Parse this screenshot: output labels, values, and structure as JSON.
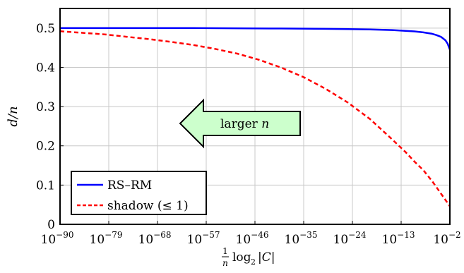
{
  "chart_data": {
    "type": "line",
    "xlabel": "1/n log2 |C|",
    "xlabel_parts": {
      "frac_num": "1",
      "frac_den": "n",
      "log": "log",
      "log_base": "2",
      "arg": "|C|"
    },
    "ylabel": "d/n",
    "x_scale": "log10",
    "xlim": [
      1e-90,
      0.01
    ],
    "ylim": [
      0,
      0.55
    ],
    "grid": true,
    "x_ticks": [
      {
        "base": "10",
        "exp": "−90",
        "value": -90
      },
      {
        "base": "10",
        "exp": "−79",
        "value": -79
      },
      {
        "base": "10",
        "exp": "−68",
        "value": -68
      },
      {
        "base": "10",
        "exp": "−57",
        "value": -57
      },
      {
        "base": "10",
        "exp": "−46",
        "value": -46
      },
      {
        "base": "10",
        "exp": "−35",
        "value": -35
      },
      {
        "base": "10",
        "exp": "−24",
        "value": -24
      },
      {
        "base": "10",
        "exp": "−13",
        "value": -13
      },
      {
        "base": "10",
        "exp": "−2",
        "value": -2
      }
    ],
    "y_ticks": [
      {
        "label": "0",
        "value": 0
      },
      {
        "label": "0.1",
        "value": 0.1
      },
      {
        "label": "0.2",
        "value": 0.2
      },
      {
        "label": "0.3",
        "value": 0.3
      },
      {
        "label": "0.4",
        "value": 0.4
      },
      {
        "label": "0.5",
        "value": 0.5
      }
    ],
    "series": [
      {
        "name": "RS–RM",
        "color": "#0000ff",
        "dash": "solid",
        "log10_x": [
          -90,
          -80,
          -70,
          -60,
          -50,
          -40,
          -30,
          -25,
          -20,
          -15,
          -12,
          -10,
          -8,
          -6,
          -5,
          -4,
          -3,
          -2.5,
          -2
        ],
        "y": [
          0.5,
          0.5,
          0.5,
          0.5,
          0.4995,
          0.499,
          0.498,
          0.4975,
          0.4965,
          0.495,
          0.493,
          0.4915,
          0.489,
          0.4855,
          0.482,
          0.4775,
          0.469,
          0.46,
          0.445
        ]
      },
      {
        "name": "shadow (≤ 1)",
        "color": "#ff0000",
        "dash": "dashed",
        "log10_x": [
          -90,
          -85,
          -80,
          -75,
          -70,
          -65,
          -60,
          -55,
          -50,
          -45,
          -40,
          -35,
          -30,
          -25,
          -20,
          -15,
          -12,
          -10,
          -8,
          -6,
          -4,
          -2
        ],
        "y": [
          0.492,
          0.488,
          0.484,
          0.478,
          0.472,
          0.465,
          0.457,
          0.447,
          0.435,
          0.419,
          0.399,
          0.375,
          0.345,
          0.31,
          0.268,
          0.216,
          0.184,
          0.16,
          0.138,
          0.11,
          0.078,
          0.046
        ]
      }
    ],
    "legend": {
      "placement": "bottom-left"
    },
    "annotation": {
      "text_prefix": "larger",
      "text_var": "n",
      "direction": "left"
    }
  }
}
